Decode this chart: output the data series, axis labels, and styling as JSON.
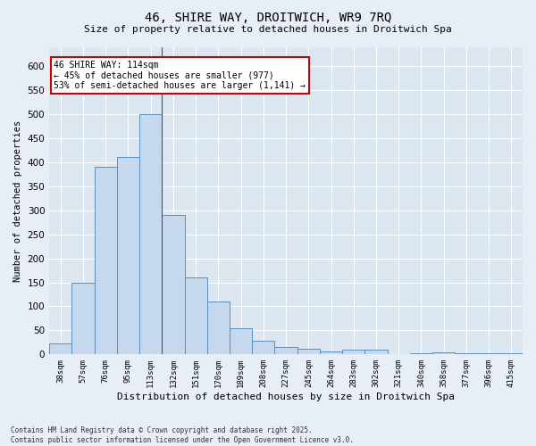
{
  "title_line1": "46, SHIRE WAY, DROITWICH, WR9 7RQ",
  "title_line2": "Size of property relative to detached houses in Droitwich Spa",
  "xlabel": "Distribution of detached houses by size in Droitwich Spa",
  "ylabel": "Number of detached properties",
  "categories": [
    "38sqm",
    "57sqm",
    "76sqm",
    "95sqm",
    "113sqm",
    "132sqm",
    "151sqm",
    "170sqm",
    "189sqm",
    "208sqm",
    "227sqm",
    "245sqm",
    "264sqm",
    "283sqm",
    "302sqm",
    "321sqm",
    "340sqm",
    "358sqm",
    "377sqm",
    "396sqm",
    "415sqm"
  ],
  "values": [
    22,
    150,
    390,
    410,
    500,
    290,
    160,
    110,
    55,
    28,
    15,
    12,
    6,
    9,
    9,
    0,
    3,
    5,
    3,
    2,
    2
  ],
  "bar_color": "#c5d8ed",
  "bar_edge_color": "#5a8fc0",
  "highlight_bar_index": 4,
  "vline_x_index": 4,
  "annotation_text": "46 SHIRE WAY: 114sqm\n← 45% of detached houses are smaller (977)\n53% of semi-detached houses are larger (1,141) →",
  "annotation_box_color": "#ffffff",
  "annotation_box_edge": "#cc0000",
  "ylim": [
    0,
    640
  ],
  "yticks": [
    0,
    50,
    100,
    150,
    200,
    250,
    300,
    350,
    400,
    450,
    500,
    550,
    600
  ],
  "background_color": "#e8eef5",
  "plot_bg_color": "#dce6f0",
  "grid_color": "#ffffff",
  "footer_line1": "Contains HM Land Registry data © Crown copyright and database right 2025.",
  "footer_line2": "Contains public sector information licensed under the Open Government Licence v3.0."
}
